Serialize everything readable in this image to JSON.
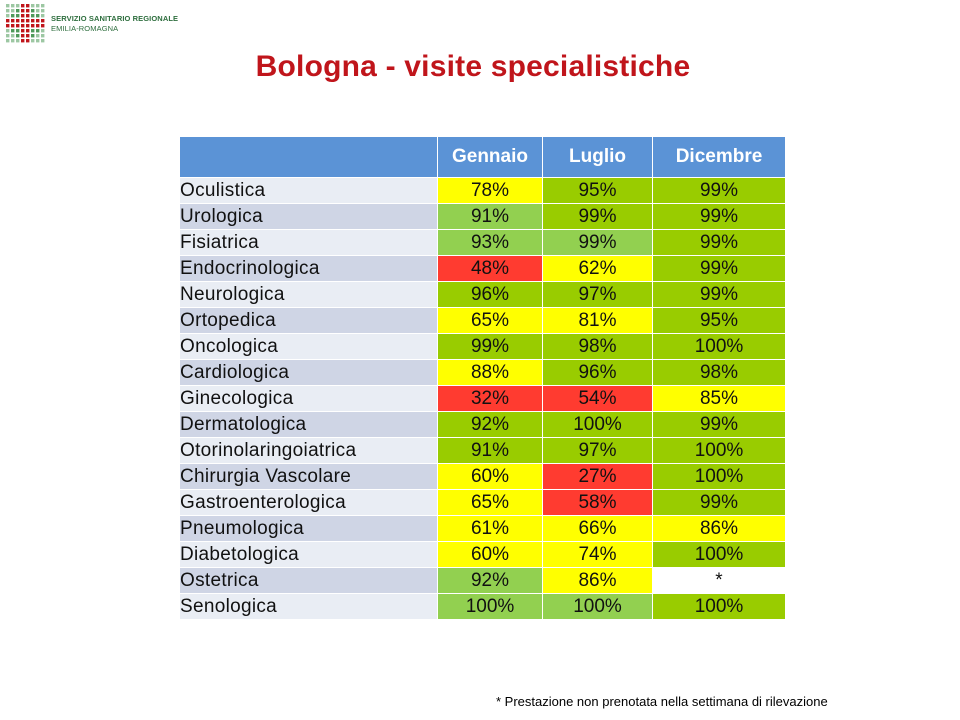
{
  "logo": {
    "line1": "SERVIZIO SANITARIO REGIONALE",
    "line2": "EMILIA-ROMAGNA"
  },
  "title": "Bologna - visite specialistiche",
  "colors": {
    "yellow": "#ffff00",
    "lime": "#99cc00",
    "light_green": "#92d050",
    "red": "#ff3b30",
    "white": "#ffffff",
    "header_blue": "#5b93d6",
    "title_red": "#c0151b"
  },
  "table": {
    "columns": [
      "",
      "Gennaio",
      "Luglio",
      "Dicembre"
    ],
    "rows": [
      {
        "name": "Oculistica",
        "cells": [
          {
            "v": "78%",
            "c": "yellow"
          },
          {
            "v": "95%",
            "c": "lime"
          },
          {
            "v": "99%",
            "c": "lime"
          }
        ]
      },
      {
        "name": "Urologica",
        "cells": [
          {
            "v": "91%",
            "c": "light_green"
          },
          {
            "v": "99%",
            "c": "lime"
          },
          {
            "v": "99%",
            "c": "lime"
          }
        ]
      },
      {
        "name": "Fisiatrica",
        "cells": [
          {
            "v": "93%",
            "c": "light_green"
          },
          {
            "v": "99%",
            "c": "light_green"
          },
          {
            "v": "99%",
            "c": "lime"
          }
        ]
      },
      {
        "name": "Endocrinologica",
        "cells": [
          {
            "v": "48%",
            "c": "red"
          },
          {
            "v": "62%",
            "c": "yellow"
          },
          {
            "v": "99%",
            "c": "lime"
          }
        ]
      },
      {
        "name": "Neurologica",
        "cells": [
          {
            "v": "96%",
            "c": "lime"
          },
          {
            "v": "97%",
            "c": "lime"
          },
          {
            "v": "99%",
            "c": "lime"
          }
        ]
      },
      {
        "name": "Ortopedica",
        "cells": [
          {
            "v": "65%",
            "c": "yellow"
          },
          {
            "v": "81%",
            "c": "yellow"
          },
          {
            "v": "95%",
            "c": "lime"
          }
        ]
      },
      {
        "name": "Oncologica",
        "cells": [
          {
            "v": "99%",
            "c": "lime"
          },
          {
            "v": "98%",
            "c": "lime"
          },
          {
            "v": "100%",
            "c": "lime"
          }
        ]
      },
      {
        "name": "Cardiologica",
        "cells": [
          {
            "v": "88%",
            "c": "yellow"
          },
          {
            "v": "96%",
            "c": "lime"
          },
          {
            "v": "98%",
            "c": "lime"
          }
        ]
      },
      {
        "name": "Ginecologica",
        "cells": [
          {
            "v": "32%",
            "c": "red"
          },
          {
            "v": "54%",
            "c": "red"
          },
          {
            "v": "85%",
            "c": "yellow"
          }
        ]
      },
      {
        "name": "Dermatologica",
        "cells": [
          {
            "v": "92%",
            "c": "lime"
          },
          {
            "v": "100%",
            "c": "lime"
          },
          {
            "v": "99%",
            "c": "lime"
          }
        ]
      },
      {
        "name": "Otorinolaringoiatrica",
        "cells": [
          {
            "v": "91%",
            "c": "lime"
          },
          {
            "v": "97%",
            "c": "lime"
          },
          {
            "v": "100%",
            "c": "lime"
          }
        ]
      },
      {
        "name": "Chirurgia Vascolare",
        "cells": [
          {
            "v": "60%",
            "c": "yellow"
          },
          {
            "v": "27%",
            "c": "red"
          },
          {
            "v": "100%",
            "c": "lime"
          }
        ]
      },
      {
        "name": "Gastroenterologica",
        "cells": [
          {
            "v": "65%",
            "c": "yellow"
          },
          {
            "v": "58%",
            "c": "red"
          },
          {
            "v": "99%",
            "c": "lime"
          }
        ]
      },
      {
        "name": "Pneumologica",
        "cells": [
          {
            "v": "61%",
            "c": "yellow"
          },
          {
            "v": "66%",
            "c": "yellow"
          },
          {
            "v": "86%",
            "c": "yellow"
          }
        ]
      },
      {
        "name": "Diabetologica",
        "cells": [
          {
            "v": "60%",
            "c": "yellow"
          },
          {
            "v": "74%",
            "c": "yellow"
          },
          {
            "v": "100%",
            "c": "lime"
          }
        ]
      },
      {
        "name": "Ostetrica",
        "cells": [
          {
            "v": "92%",
            "c": "light_green"
          },
          {
            "v": "86%",
            "c": "yellow"
          },
          {
            "v": "*",
            "c": "white"
          }
        ]
      },
      {
        "name": "Senologica",
        "cells": [
          {
            "v": "100%",
            "c": "light_green"
          },
          {
            "v": "100%",
            "c": "light_green"
          },
          {
            "v": "100%",
            "c": "lime"
          }
        ]
      }
    ]
  },
  "footnote": "* Prestazione non prenotata nella settimana di rilevazione"
}
